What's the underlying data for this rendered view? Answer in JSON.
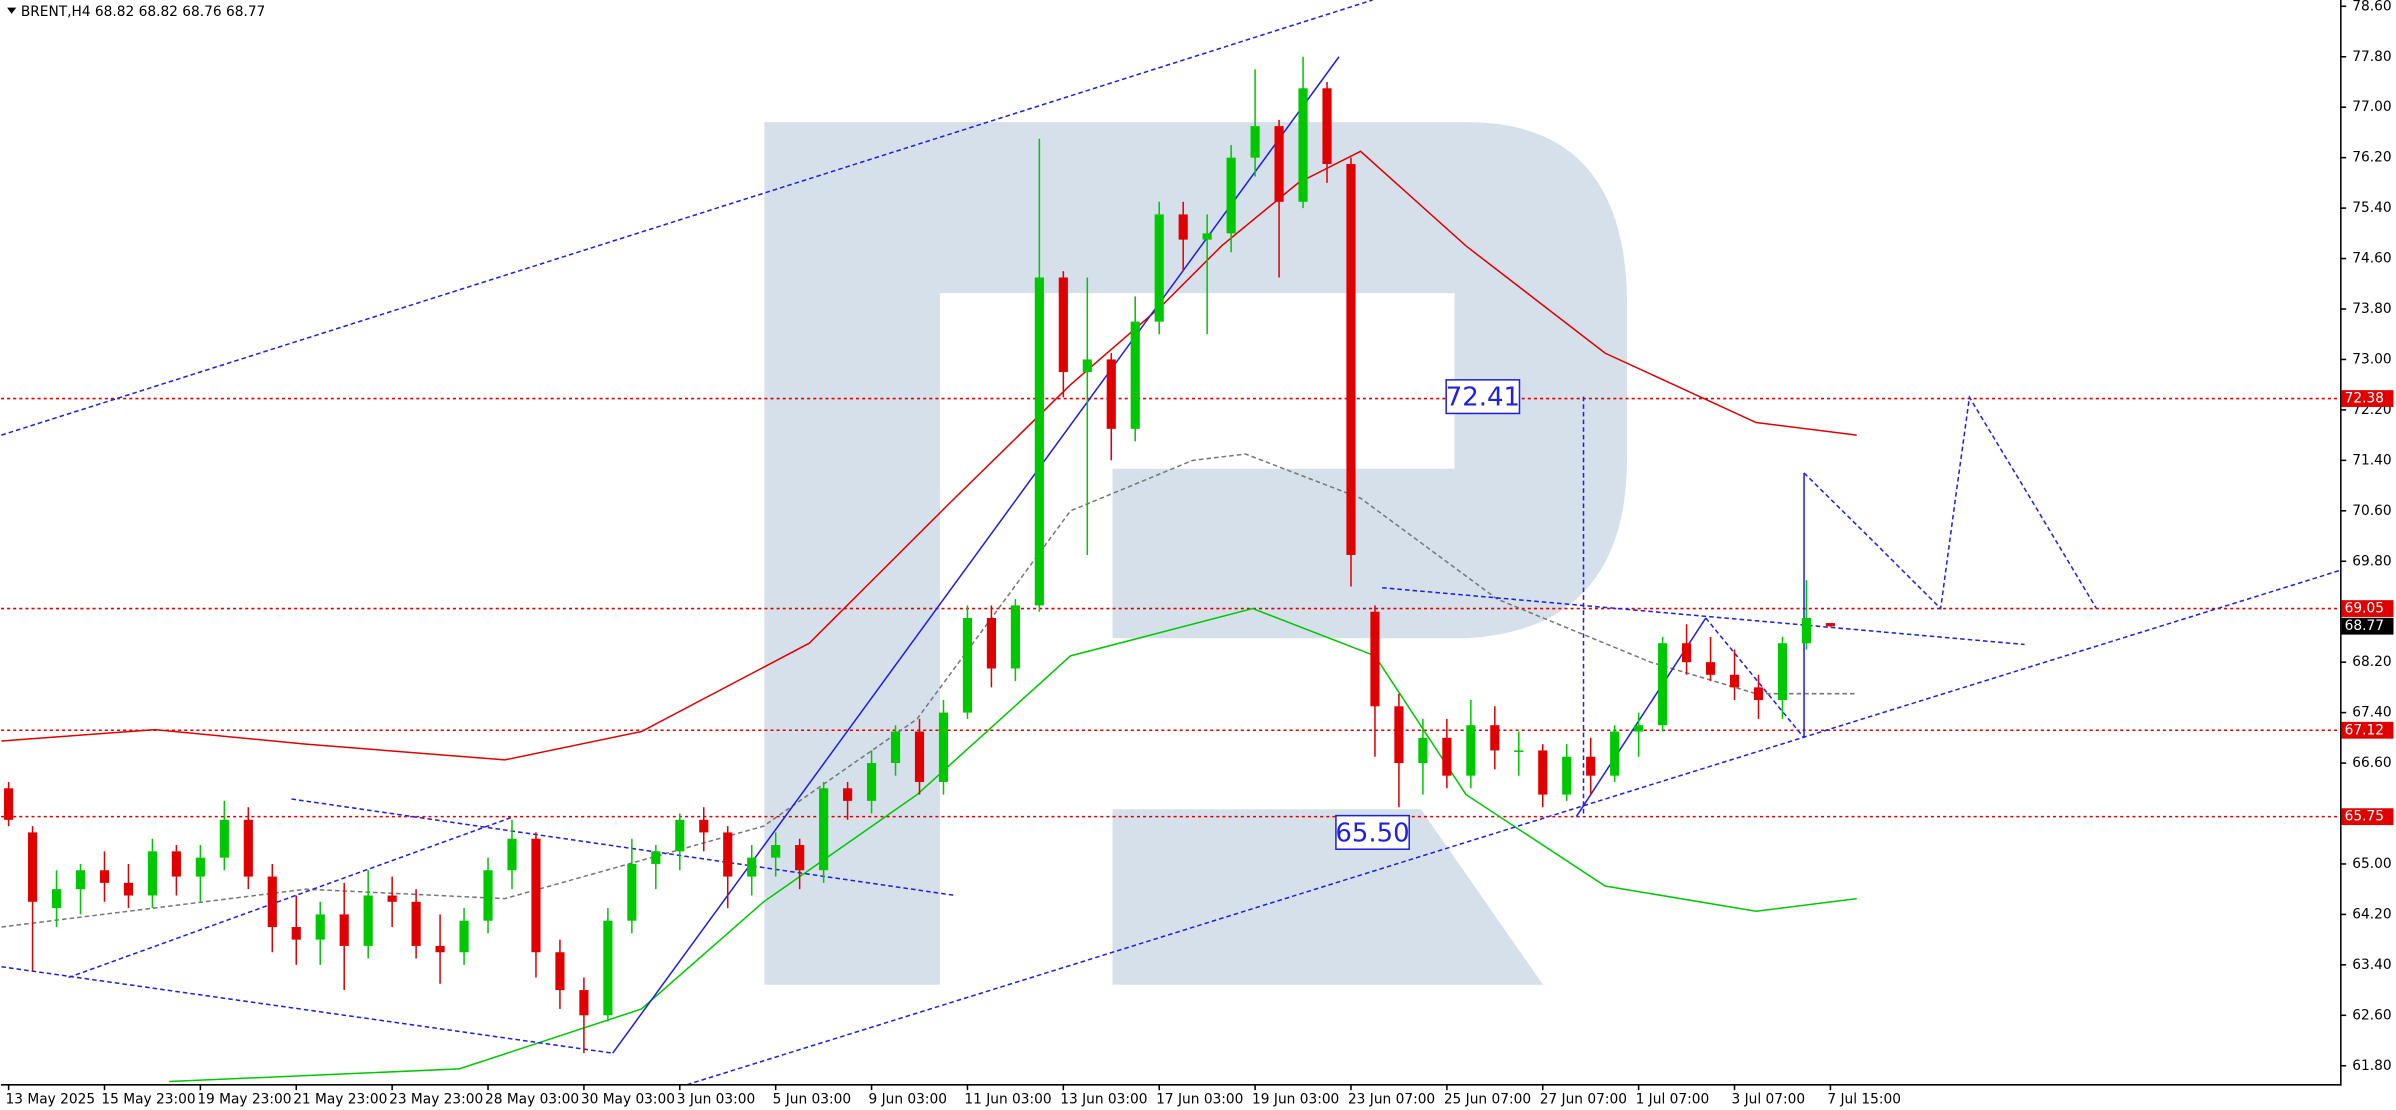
{
  "chart_data": {
    "type": "candlestick",
    "title": "BRENT,H4  68.82 68.82 68.76 68.77",
    "categories": [
      "13 May 2025",
      null,
      null,
      null,
      "15 May 23:00",
      null,
      null,
      null,
      "19 May 23:00",
      null,
      null,
      null,
      "21 May 23:00",
      null,
      null,
      null,
      "23 May 23:00",
      null,
      null,
      null,
      "28 May 03:00",
      null,
      null,
      null,
      "30 May 03:00",
      null,
      null,
      null,
      "3 Jun 03:00",
      null,
      null,
      null,
      "5 Jun 03:00",
      null,
      null,
      null,
      "9 Jun 03:00",
      null,
      null,
      null,
      "11 Jun 03:00",
      null,
      null,
      null,
      "13 Jun 03:00",
      null,
      null,
      null,
      "17 Jun 03:00",
      null,
      null,
      null,
      "19 Jun 03:00",
      null,
      null,
      null,
      "23 Jun 07:00",
      null,
      null,
      null,
      "25 Jun 07:00",
      null,
      null,
      null,
      "27 Jun 07:00",
      null,
      null,
      null,
      "1 Jul 07:00",
      null,
      null,
      null,
      "3 Jul 07:00",
      null,
      null,
      null,
      "7 Jul 15:00"
    ],
    "open": [
      66.2,
      65.5,
      64.3,
      64.6,
      64.9,
      64.7,
      64.5,
      65.2,
      64.8,
      65.1,
      65.7,
      64.8,
      64.0,
      63.8,
      64.2,
      63.7,
      64.5,
      64.4,
      63.7,
      63.6,
      64.1,
      64.9,
      65.4,
      63.6,
      63.0,
      62.6,
      64.1,
      65.0,
      65.2,
      65.7,
      65.5,
      64.8,
      65.1,
      65.3,
      64.9,
      66.2,
      66.0,
      66.6,
      67.1,
      66.3,
      67.4,
      68.9,
      68.1,
      69.1,
      74.3,
      72.8,
      73.0,
      71.9,
      73.6,
      75.3,
      74.9,
      75.0,
      76.2,
      76.7,
      75.5,
      77.3,
      76.1,
      69.0,
      67.5,
      66.6,
      67.0,
      66.4,
      67.2,
      66.8,
      66.8,
      66.1,
      66.7,
      66.4,
      67.1,
      67.2,
      68.5,
      68.2,
      68.0,
      67.8,
      67.6,
      68.5,
      68.82
    ],
    "high": [
      66.3,
      65.6,
      64.9,
      65.0,
      65.2,
      65.0,
      65.4,
      65.3,
      65.3,
      66.0,
      65.9,
      65.0,
      64.5,
      64.4,
      64.7,
      64.9,
      64.8,
      64.6,
      64.2,
      64.3,
      65.1,
      65.7,
      65.5,
      63.8,
      63.2,
      64.3,
      65.4,
      65.3,
      65.8,
      65.9,
      65.6,
      65.3,
      65.5,
      65.4,
      66.3,
      66.3,
      66.8,
      67.2,
      67.3,
      67.6,
      69.1,
      69.1,
      69.2,
      76.5,
      74.4,
      74.3,
      73.1,
      74.0,
      75.5,
      75.5,
      75.3,
      76.4,
      77.6,
      76.8,
      77.8,
      77.4,
      76.2,
      69.1,
      67.7,
      67.3,
      67.3,
      67.6,
      67.5,
      67.1,
      66.9,
      66.9,
      67.0,
      67.2,
      67.4,
      68.6,
      68.8,
      68.6,
      68.4,
      68.0,
      68.6,
      69.5,
      68.82
    ],
    "low": [
      65.6,
      63.3,
      64.0,
      64.2,
      64.4,
      64.3,
      64.3,
      64.5,
      64.4,
      64.9,
      64.6,
      63.6,
      63.4,
      63.4,
      63.0,
      63.5,
      64.0,
      63.5,
      63.1,
      63.4,
      63.9,
      64.6,
      63.2,
      62.7,
      62.0,
      62.5,
      63.9,
      64.6,
      64.9,
      65.2,
      64.3,
      64.5,
      64.8,
      64.6,
      64.7,
      65.7,
      65.8,
      66.4,
      66.1,
      66.1,
      67.3,
      67.8,
      67.9,
      69.0,
      72.4,
      69.9,
      71.4,
      71.7,
      73.4,
      74.4,
      73.4,
      74.7,
      75.9,
      74.3,
      75.4,
      75.8,
      69.4,
      66.7,
      65.9,
      66.1,
      66.2,
      66.2,
      66.5,
      66.4,
      65.9,
      66.0,
      66.1,
      66.3,
      66.7,
      67.1,
      68.0,
      67.9,
      67.6,
      67.3,
      67.3,
      68.4,
      68.76
    ],
    "close": [
      65.7,
      64.4,
      64.6,
      64.9,
      64.7,
      64.5,
      65.2,
      64.8,
      65.1,
      65.7,
      64.8,
      64.0,
      63.8,
      64.2,
      63.7,
      64.5,
      64.4,
      63.7,
      63.6,
      64.1,
      64.9,
      65.4,
      63.6,
      63.0,
      62.6,
      64.1,
      65.0,
      65.2,
      65.7,
      65.5,
      64.8,
      65.1,
      65.3,
      64.9,
      66.2,
      66.0,
      66.6,
      67.1,
      66.3,
      67.4,
      68.9,
      68.1,
      69.1,
      74.3,
      72.8,
      73.0,
      71.9,
      73.6,
      75.3,
      74.9,
      75.0,
      76.2,
      76.7,
      75.5,
      77.3,
      76.1,
      69.9,
      67.5,
      66.6,
      67.0,
      66.4,
      67.2,
      66.8,
      66.8,
      66.1,
      66.7,
      66.4,
      67.1,
      67.2,
      68.5,
      68.2,
      68.0,
      67.8,
      67.6,
      68.5,
      68.9,
      68.77
    ],
    "up_color": "#00c800",
    "down_color": "#e00000",
    "ylim": [
      61.51,
      78.7
    ],
    "yticks": [
      {
        "value": 78.6,
        "label": "78.60"
      },
      {
        "value": 77.8,
        "label": "77.80"
      },
      {
        "value": 77.0,
        "label": "77.00"
      },
      {
        "value": 76.2,
        "label": "76.20"
      },
      {
        "value": 75.4,
        "label": "75.40"
      },
      {
        "value": 74.6,
        "label": "74.60"
      },
      {
        "value": 73.8,
        "label": "73.80"
      },
      {
        "value": 73.0,
        "label": "73.00"
      },
      {
        "value": 72.2,
        "label": "72.20"
      },
      {
        "value": 71.4,
        "label": "71.40"
      },
      {
        "value": 70.6,
        "label": "70.60"
      },
      {
        "value": 69.8,
        "label": "69.80"
      },
      {
        "value": 68.2,
        "label": "68.20"
      },
      {
        "value": 67.4,
        "label": "67.40"
      },
      {
        "value": 66.6,
        "label": "66.60"
      },
      {
        "value": 65.0,
        "label": "65.00"
      },
      {
        "value": 64.2,
        "label": "64.20"
      },
      {
        "value": 63.4,
        "label": "63.40"
      },
      {
        "value": 62.6,
        "label": "62.60"
      },
      {
        "value": 61.8,
        "label": "61.80"
      }
    ],
    "levels": [
      {
        "value": 72.38,
        "color": "#e00000"
      },
      {
        "value": 69.05,
        "color": "#e00000"
      },
      {
        "value": 67.12,
        "color": "#e00000"
      },
      {
        "value": 65.75,
        "color": "#e00000"
      }
    ],
    "current_price": 68.77,
    "annotations": [
      {
        "label": "72.41",
        "value": 72.41,
        "x": 61.5
      },
      {
        "label": "65.50",
        "value": 65.5,
        "x": 56.9
      }
    ],
    "overlays": [
      {
        "color": "#e00000",
        "dash": false,
        "x": [
          -0.3,
          6.1,
          12.4,
          20.7,
          26.4,
          33.4,
          39.2,
          44.3,
          48.1,
          50.6,
          53.8,
          56.4,
          60.8,
          66.6,
          72.9,
          77.1
        ],
        "values": [
          66.95,
          67.13,
          66.9,
          66.65,
          67.1,
          68.5,
          70.7,
          72.6,
          73.85,
          74.8,
          75.8,
          76.3,
          74.8,
          73.1,
          72.0,
          71.8
        ]
      },
      {
        "color": "#00c800",
        "dash": false,
        "x": [
          6.7,
          18.8,
          26.4,
          31.5,
          37.9,
          44.3,
          51.9,
          57.0,
          60.8,
          66.6,
          72.9,
          77.1
        ],
        "values": [
          61.55,
          61.75,
          62.7,
          64.4,
          66.1,
          68.3,
          69.05,
          68.3,
          66.1,
          64.65,
          64.25,
          64.45
        ]
      },
      {
        "color": "#777777",
        "dash": true,
        "x": [
          -0.3,
          12.4,
          20.7,
          31.5,
          37.9,
          44.3,
          49.4,
          51.6,
          56.4,
          62.1,
          68.5,
          72.9,
          77.1
        ],
        "values": [
          64.0,
          64.6,
          64.45,
          65.6,
          67.3,
          70.6,
          71.4,
          71.5,
          70.8,
          69.2,
          68.2,
          67.7,
          67.7
        ]
      },
      {
        "color": "#2020e0",
        "dash": true,
        "x": [
          -0.3,
          56.9
        ],
        "values": [
          71.8,
          78.7
        ]
      },
      {
        "color": "#2020e0",
        "dash": true,
        "x": [
          -0.3,
          25.2
        ],
        "values": [
          63.37,
          62.0
        ]
      },
      {
        "color": "#2020e0",
        "dash": true,
        "x": [
          2.5,
          21.0
        ],
        "values": [
          63.2,
          65.74
        ]
      },
      {
        "color": "#2020e0",
        "dash": true,
        "x": [
          11.8,
          39.5
        ],
        "values": [
          66.03,
          64.5
        ]
      },
      {
        "color": "#2020e0",
        "dash": true,
        "x": [
          28.3,
          97.3
        ],
        "values": [
          61.5,
          69.66
        ]
      },
      {
        "color": "#2020e0",
        "dash": true,
        "x": [
          57.3,
          84.1
        ],
        "values": [
          69.38,
          68.48
        ]
      },
      {
        "color": "#2020e0",
        "dash": false,
        "x": [
          25.2,
          55.5
        ],
        "values": [
          62.0,
          77.8
        ]
      },
      {
        "color": "#2020e0",
        "dash": false,
        "x": [
          65.4,
          70.8
        ],
        "values": [
          65.75,
          68.9
        ]
      },
      {
        "color": "#2020e0",
        "dash": false,
        "x": [
          74.9,
          74.9
        ],
        "values": [
          71.2,
          67.0
        ]
      },
      {
        "color": "#2020e0",
        "dash": true,
        "x": [
          65.7,
          65.7
        ],
        "values": [
          72.41,
          65.75
        ]
      },
      {
        "color": "#2020e0",
        "dash": true,
        "x": [
          70.8,
          74.9
        ],
        "values": [
          68.9,
          67.0
        ]
      },
      {
        "color": "#2020e0",
        "dash": true,
        "x": [
          74.9,
          77.7,
          80.6,
          81.2,
          81.8,
          84.5,
          87.1
        ],
        "values": [
          71.2,
          70.15,
          69.05,
          70.75,
          72.4,
          70.7,
          69.05
        ]
      }
    ]
  }
}
